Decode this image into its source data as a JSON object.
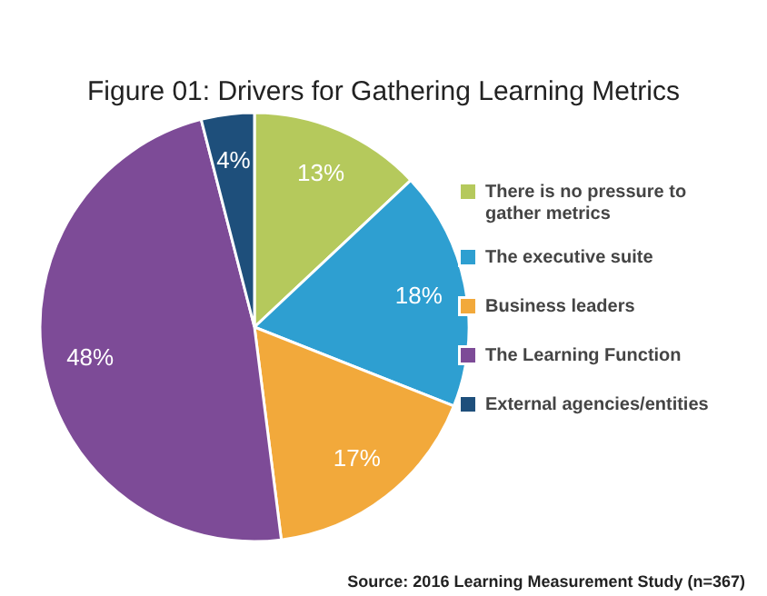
{
  "chart_data": {
    "type": "pie",
    "title": "Figure 01: Drivers for Gathering Learning Metrics",
    "categories": [
      "There is no pressure to gather metrics",
      "The executive suite",
      "Business leaders",
      "The Learning Function",
      "External agencies/entities"
    ],
    "values": [
      13,
      18,
      17,
      48,
      4
    ],
    "colors": [
      "#b5c95c",
      "#2e9fd1",
      "#f2a93b",
      "#7d4b97",
      "#1e4f7b"
    ],
    "value_labels": [
      "13%",
      "18%",
      "17%",
      "48%",
      "4%"
    ],
    "legend": "right",
    "annotations": [
      "Source: 2016 Learning Measurement Study (n=367)"
    ]
  }
}
